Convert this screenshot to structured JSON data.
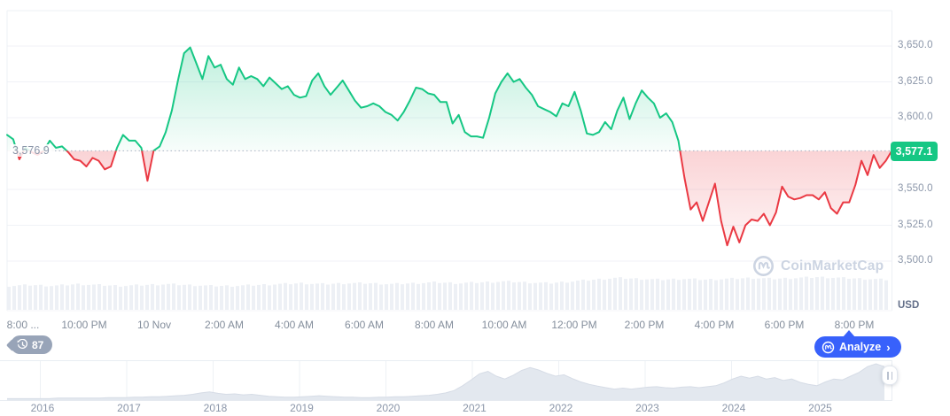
{
  "chart_data": {
    "type": "area",
    "unit": "USD",
    "baseline_value": 3576.9,
    "baseline_label": "3,576.9",
    "current_price_value": 3577.1,
    "current_price_label": "3,577.1",
    "ylim": [
      3490,
      3658
    ],
    "grid": "horizontal-only",
    "colors": {
      "up": "#16c784",
      "down": "#ea3943",
      "accent": "#3861fb"
    },
    "y_ticks": [
      {
        "value": 3650,
        "label": "3,650.0"
      },
      {
        "value": 3625,
        "label": "3,625.0"
      },
      {
        "value": 3600,
        "label": "3,600.0"
      },
      {
        "value": 3550,
        "label": "3,550.0"
      },
      {
        "value": 3525,
        "label": "3,525.0"
      },
      {
        "value": 3500,
        "label": "3,500.0"
      }
    ],
    "x_ticks": [
      "8:00 ...",
      "10:00 PM",
      "10 Nov",
      "2:00 AM",
      "4:00 AM",
      "6:00 AM",
      "8:00 AM",
      "10:00 AM",
      "12:00 PM",
      "2:00 PM",
      "4:00 PM",
      "6:00 PM",
      "8:00 PM"
    ],
    "series": [
      {
        "name": "price-usd",
        "values_ref": "prices"
      }
    ],
    "prices": [
      3588,
      3585,
      3571,
      3579,
      3576,
      3574,
      3577,
      3584,
      3579,
      3580,
      3576,
      3571,
      3570,
      3566,
      3572,
      3570,
      3564,
      3566,
      3579,
      3588,
      3584,
      3584,
      3579,
      3556,
      3577,
      3580,
      3590,
      3605,
      3626,
      3645,
      3649,
      3638,
      3627,
      3643,
      3635,
      3637,
      3627,
      3623,
      3635,
      3627,
      3629,
      3627,
      3622,
      3628,
      3624,
      3620,
      3622,
      3616,
      3614,
      3615,
      3626,
      3631,
      3622,
      3616,
      3621,
      3626,
      3619,
      3612,
      3607,
      3608,
      3610,
      3608,
      3604,
      3602,
      3598,
      3604,
      3612,
      3621,
      3620,
      3617,
      3616,
      3611,
      3611,
      3596,
      3602,
      3590,
      3587,
      3587,
      3586,
      3600,
      3617,
      3625,
      3631,
      3625,
      3627,
      3621,
      3616,
      3608,
      3606,
      3604,
      3601,
      3610,
      3608,
      3618,
      3605,
      3589,
      3588,
      3590,
      3597,
      3592,
      3605,
      3614,
      3599,
      3610,
      3619,
      3614,
      3610,
      3600,
      3603,
      3597,
      3584,
      3558,
      3536,
      3541,
      3528,
      3541,
      3554,
      3528,
      3511,
      3524,
      3513,
      3525,
      3529,
      3528,
      3533,
      3525,
      3534,
      3552,
      3545,
      3543,
      3544,
      3546,
      3546,
      3543,
      3548,
      3537,
      3533,
      3541,
      3541,
      3553,
      3570,
      3560,
      3574,
      3565,
      3570,
      3577.1
    ],
    "volume_profile": [
      27,
      28,
      27,
      29,
      28,
      27,
      28,
      29,
      28,
      27,
      27,
      28,
      29,
      30,
      29,
      30,
      30,
      29,
      30,
      31,
      30,
      31,
      32,
      31,
      30,
      32,
      34,
      36,
      35,
      34,
      35,
      34,
      35,
      36,
      35,
      36,
      37,
      36,
      35,
      34
    ],
    "navigator": {
      "years": [
        "2016",
        "2017",
        "2018",
        "2019",
        "2020",
        "2021",
        "2022",
        "2023",
        "2024",
        "2025"
      ],
      "values": [
        0.03,
        0.03,
        0.03,
        0.03,
        0.03,
        0.03,
        0.04,
        0.04,
        0.04,
        0.04,
        0.04,
        0.04,
        0.05,
        0.05,
        0.05,
        0.06,
        0.06,
        0.07,
        0.07,
        0.08,
        0.09,
        0.1,
        0.12,
        0.15,
        0.17,
        0.14,
        0.12,
        0.13,
        0.11,
        0.12,
        0.1,
        0.08,
        0.07,
        0.06,
        0.06,
        0.07,
        0.08,
        0.09,
        0.08,
        0.07,
        0.06,
        0.06,
        0.05,
        0.05,
        0.06,
        0.06,
        0.07,
        0.07,
        0.08,
        0.09,
        0.1,
        0.12,
        0.15,
        0.2,
        0.3,
        0.42,
        0.55,
        0.6,
        0.5,
        0.44,
        0.52,
        0.62,
        0.68,
        0.63,
        0.56,
        0.5,
        0.53,
        0.45,
        0.38,
        0.33,
        0.29,
        0.26,
        0.23,
        0.25,
        0.23,
        0.25,
        0.27,
        0.28,
        0.26,
        0.25,
        0.27,
        0.28,
        0.26,
        0.28,
        0.3,
        0.36,
        0.44,
        0.5,
        0.46,
        0.5,
        0.44,
        0.47,
        0.41,
        0.44,
        0.37,
        0.33,
        0.3,
        0.38,
        0.44,
        0.42,
        0.5,
        0.58,
        0.7,
        0.76,
        0.7
      ]
    }
  },
  "overlay": {
    "history_count": "87",
    "analyze_label": "Analyze",
    "analyze_arrow": "›"
  },
  "watermark": {
    "text": "CoinMarketCap"
  }
}
